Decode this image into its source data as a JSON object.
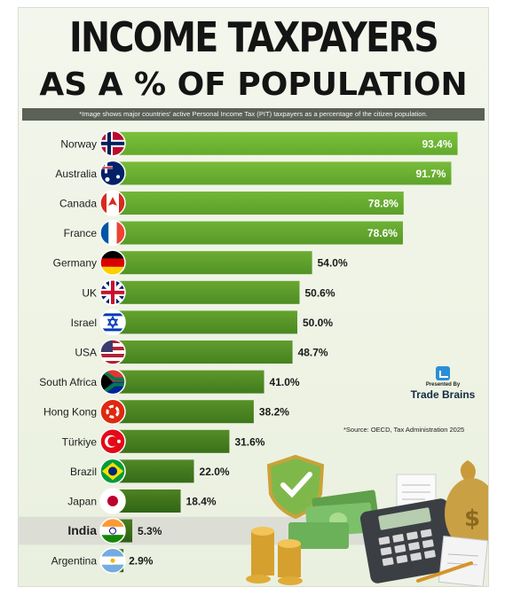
{
  "header": {
    "title": "INCOME TAXPAYERS",
    "subtitle": "AS A % OF POPULATION",
    "note": "*Image shows major countries' active Personal Income Tax (PIT) taxpayers as a percentage of the citizen population."
  },
  "branding": {
    "presented_by": "Presented By",
    "brand": "Trade Brains",
    "source": "*Source: OECD, Tax Administration 2025"
  },
  "colors": {
    "bar_top": "#7cc13d",
    "bar_bottom": "#2f6414",
    "highlight_row": "#dcded6",
    "label_text": "#1e1e1e"
  },
  "chart_data": {
    "type": "bar",
    "orientation": "horizontal",
    "unit": "%",
    "categories": [
      "Norway",
      "Australia",
      "Canada",
      "France",
      "Germany",
      "UK",
      "Israel",
      "USA",
      "South Africa",
      "Hong Kong",
      "Türkiye",
      "Brazil",
      "Japan",
      "India",
      "Argentina"
    ],
    "values": [
      93.4,
      91.7,
      78.8,
      78.6,
      54.0,
      50.6,
      50.0,
      48.7,
      41.0,
      38.2,
      31.6,
      22.0,
      18.4,
      5.3,
      2.9
    ],
    "value_labels": [
      "93.4%",
      "91.7%",
      "78.8%",
      "78.6%",
      "54.0%",
      "50.6%",
      "50.0%",
      "48.7%",
      "41.0%",
      "38.2%",
      "31.6%",
      "22.0%",
      "18.4%",
      "5.3%",
      "2.9%"
    ],
    "flag_icons": [
      "norway-flag-icon",
      "australia-flag-icon",
      "canada-flag-icon",
      "france-flag-icon",
      "germany-flag-icon",
      "uk-flag-icon",
      "israel-flag-icon",
      "usa-flag-icon",
      "south-africa-flag-icon",
      "hong-kong-flag-icon",
      "turkiye-flag-icon",
      "brazil-flag-icon",
      "japan-flag-icon",
      "india-flag-icon",
      "argentina-flag-icon"
    ],
    "highlighted": "India",
    "xlim": [
      0,
      100
    ],
    "grid": false,
    "legend": "none"
  }
}
